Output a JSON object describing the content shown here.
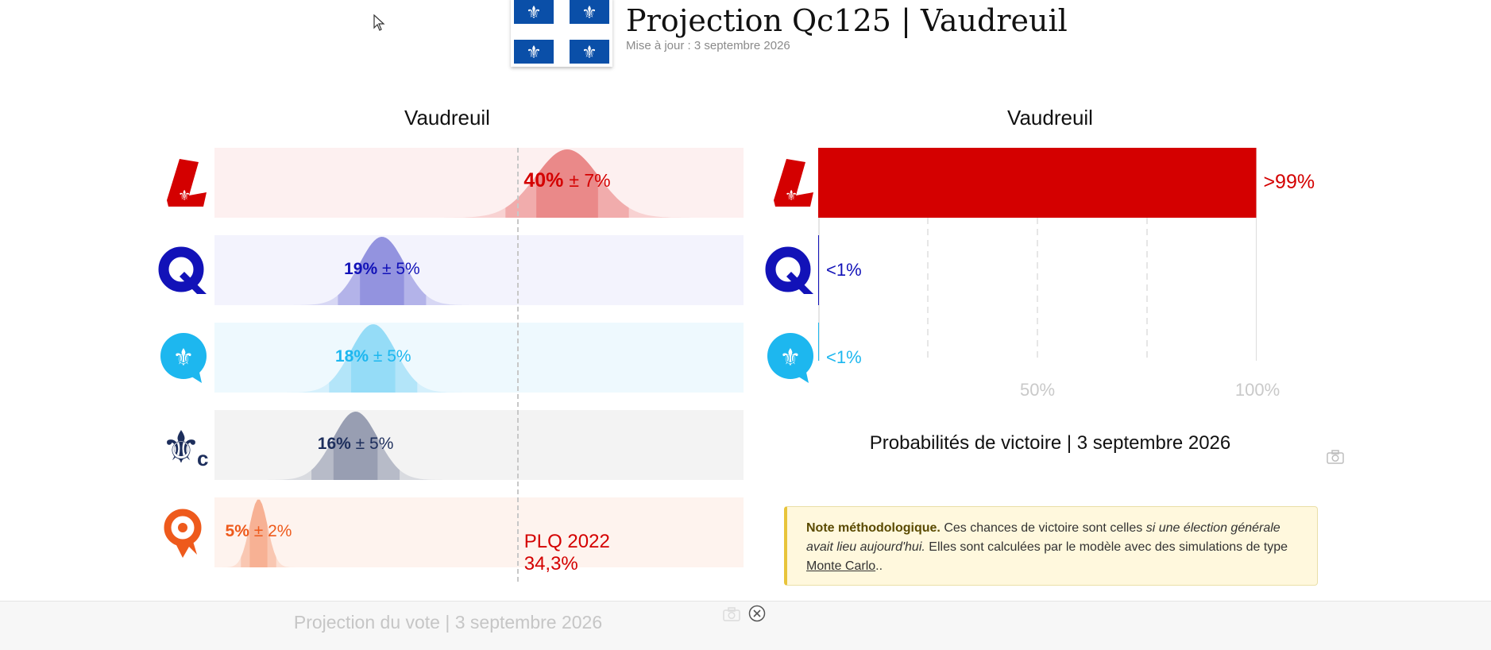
{
  "header": {
    "title": "Projection Qc125 | Vaudreuil",
    "updated": "Mise à jour : 3 septembre 2026",
    "flag_icon": "quebec-flag-icon"
  },
  "vote_panel": {
    "title": "Vaudreuil",
    "caption": "Projection du vote | 3 septembre 2026",
    "reference": {
      "label": "PLQ 2022",
      "value": "34,3%",
      "value_num": 34.3
    }
  },
  "win_panel": {
    "title": "Vaudreuil",
    "caption": "Probabilités de victoire | 3 septembre 2026",
    "ticks": [
      "50%",
      "100%"
    ]
  },
  "note": {
    "bold": "Note méthodologique.",
    "text1": "Ces chances de victoire sont celles",
    "italic": "si une élection générale avait lieu aujourd'hui.",
    "text2": "Elles sont calculées par le modèle avec des simulations de type",
    "link": "Monte Carlo",
    "end": ".."
  },
  "colors": {
    "PLQ": "#d40000",
    "PQ": "#1212b8",
    "CAQ": "#1db7ef",
    "PCQ": "#1d2e5c",
    "QS": "#ee5a1c"
  },
  "chart_data": [
    {
      "type": "bar",
      "title": "Vaudreuil",
      "caption": "Projection du vote | 3 septembre 2026",
      "categories": [
        "PLQ",
        "PQ",
        "CAQ",
        "PCQ",
        "QS"
      ],
      "series": [
        {
          "values": [
            40,
            19,
            18,
            16,
            5
          ],
          "moe": [
            7,
            5,
            5,
            5,
            2
          ]
        }
      ],
      "labels": [
        {
          "value": "40%",
          "moe": "± 7%"
        },
        {
          "value": "19%",
          "moe": "± 5%"
        },
        {
          "value": "18%",
          "moe": "± 5%"
        },
        {
          "value": "16%",
          "moe": "± 5%"
        },
        {
          "value": "5%",
          "moe": "± 2%"
        }
      ],
      "reference_line": {
        "label": "PLQ 2022",
        "value": 34.3
      },
      "xlim": [
        0,
        60
      ]
    },
    {
      "type": "bar",
      "title": "Vaudreuil",
      "caption": "Probabilités de victoire | 3 septembre 2026",
      "categories": [
        "PLQ",
        "PQ",
        "CAQ"
      ],
      "values": [
        99.9,
        0.1,
        0.1
      ],
      "value_labels": [
        ">99%",
        "<1%",
        "<1%"
      ],
      "xlim": [
        0,
        100
      ],
      "xticks": [
        "50%",
        "100%"
      ],
      "grid": true
    }
  ]
}
